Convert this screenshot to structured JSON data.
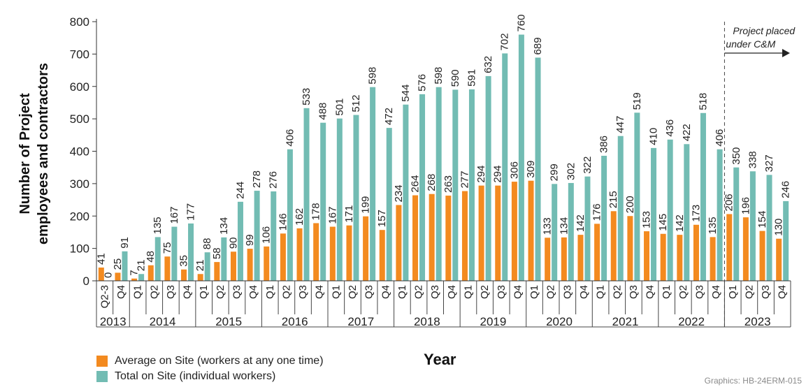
{
  "chart_data": {
    "type": "bar",
    "ylabel": "Number of Project employees and contractors",
    "ylabel_lines": [
      "Number of Project",
      "employees and contractors"
    ],
    "xlabel": "Year",
    "ylim": [
      0,
      800
    ],
    "yticks": [
      0,
      100,
      200,
      300,
      400,
      500,
      600,
      700,
      800
    ],
    "categories": [
      "Q2-3",
      "Q4",
      "Q1",
      "Q2",
      "Q3",
      "Q4",
      "Q1",
      "Q2",
      "Q3",
      "Q4",
      "Q1",
      "Q2",
      "Q3",
      "Q4",
      "Q1",
      "Q2",
      "Q3",
      "Q4",
      "Q1",
      "Q2",
      "Q3",
      "Q4",
      "Q1",
      "Q2",
      "Q3",
      "Q4",
      "Q1",
      "Q2",
      "Q3",
      "Q4",
      "Q1",
      "Q2",
      "Q3",
      "Q4",
      "Q1",
      "Q2",
      "Q3",
      "Q4",
      "Q1",
      "Q2",
      "Q3",
      "Q4"
    ],
    "years": [
      {
        "label": "2013",
        "count": 2
      },
      {
        "label": "2014",
        "count": 4
      },
      {
        "label": "2015",
        "count": 4
      },
      {
        "label": "2016",
        "count": 4
      },
      {
        "label": "2017",
        "count": 4
      },
      {
        "label": "2018",
        "count": 4
      },
      {
        "label": "2019",
        "count": 4
      },
      {
        "label": "2020",
        "count": 4
      },
      {
        "label": "2021",
        "count": 4
      },
      {
        "label": "2022",
        "count": 4
      },
      {
        "label": "2023",
        "count": 4
      }
    ],
    "series": [
      {
        "name": "Average on Site (workers at any one time)",
        "color": "#f38a1f",
        "values": [
          41,
          25,
          7,
          48,
          75,
          35,
          21,
          58,
          90,
          99,
          106,
          146,
          162,
          178,
          167,
          171,
          199,
          157,
          234,
          264,
          268,
          263,
          277,
          294,
          294,
          306,
          309,
          133,
          134,
          142,
          176,
          215,
          200,
          153,
          145,
          142,
          173,
          135,
          206,
          196,
          154,
          130
        ],
        "labels": [
          "41",
          "25",
          "7",
          "48",
          "75",
          "35",
          "21",
          "58",
          "90",
          "99",
          "106",
          "146",
          "162",
          "178",
          "167",
          "171",
          "199",
          "157",
          "234",
          "264",
          "268",
          "263",
          "277",
          "294",
          "294",
          "306",
          "309",
          "133",
          "134",
          "142",
          "176",
          "215",
          "200",
          "153",
          "145",
          "142",
          "173",
          "135",
          "206",
          "196",
          "154",
          "130"
        ]
      },
      {
        "name": "Total on Site (individual workers)",
        "color": "#72bcb3",
        "values": [
          0,
          91,
          21,
          135,
          167,
          177,
          88,
          134,
          244,
          278,
          276,
          406,
          533,
          488,
          501,
          512,
          598,
          472,
          544,
          576,
          598,
          590,
          591,
          632,
          702,
          760,
          689,
          299,
          302,
          322,
          386,
          447,
          519,
          410,
          436,
          422,
          518,
          406,
          350,
          338,
          327,
          246
        ],
        "labels": [
          "0",
          "91",
          "21",
          "135",
          "167",
          "177",
          "88",
          "134",
          "244",
          "278",
          "276",
          "406",
          "533",
          "488",
          "501",
          "512",
          "598",
          "472",
          "544",
          "576",
          "598",
          "590",
          "591",
          "632",
          "702",
          "760",
          "689",
          "299",
          "302",
          "322",
          "386",
          "447",
          "519",
          "410",
          "436",
          "422",
          "518",
          "406",
          "350",
          "338",
          "327",
          "246"
        ]
      }
    ],
    "annotation": {
      "text_lines": [
        "Project placed",
        "under C&M"
      ],
      "at_category_index": 38
    },
    "legend_position": "bottom-left",
    "grid": false
  },
  "credit": "Graphics: HB-24ERM-015"
}
